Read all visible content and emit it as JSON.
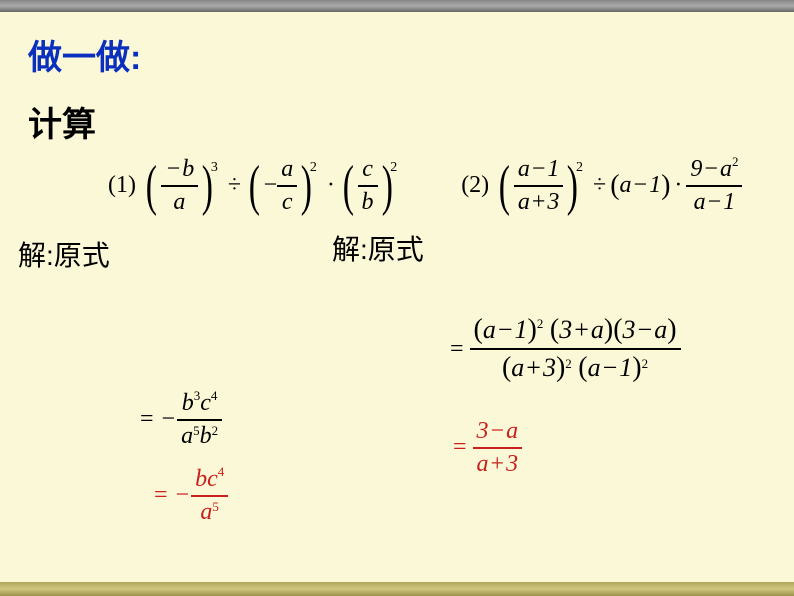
{
  "colors": {
    "background": "#fbf8d7",
    "title": "#0a2fbf",
    "text": "#000000",
    "result": "#c8201d",
    "top_bar": "#888888",
    "bottom_bar": "#b1a65c"
  },
  "typography": {
    "title_fontsize": 34,
    "subtitle_fontsize": 34,
    "label_fontsize": 28,
    "math_fontsize": 24
  },
  "title": "做一做:",
  "subtitle": "计算",
  "problems": {
    "p1": {
      "label": "(1)",
      "terms": [
        {
          "num": "−b",
          "den": "a",
          "exp": "3"
        },
        {
          "op": "÷"
        },
        {
          "prefix": "−",
          "num": "a",
          "den": "c",
          "exp": "2"
        },
        {
          "op": "·"
        },
        {
          "num": "c",
          "den": "b",
          "exp": "2"
        }
      ]
    },
    "p2": {
      "label": "(2)",
      "terms": [
        {
          "num": "a−1",
          "den": "a+3",
          "exp": "2"
        },
        {
          "op": "÷"
        },
        {
          "paren": "a−1"
        },
        {
          "op": "·"
        },
        {
          "num_parts": [
            "9−a",
            "2"
          ],
          "den": "a−1"
        }
      ]
    }
  },
  "solution_label": "解:原式",
  "steps": {
    "s1a": {
      "sign": "= −",
      "num": "b³c⁴",
      "den": "a⁵b²",
      "num_parts": [
        [
          "b",
          "3"
        ],
        [
          "c",
          "4"
        ]
      ],
      "den_parts": [
        [
          "a",
          "5"
        ],
        [
          "b",
          "2"
        ]
      ]
    },
    "s1b": {
      "sign": "= −",
      "num": "bc⁴",
      "den": "a⁵",
      "num_parts": [
        [
          "b",
          ""
        ],
        [
          "c",
          "4"
        ]
      ],
      "den_parts": [
        [
          "a",
          "5"
        ]
      ]
    },
    "s2a": {
      "sign": "=",
      "num_factors": [
        [
          "a−1",
          "2"
        ],
        [
          "3+a",
          ""
        ],
        [
          "3−a",
          ""
        ]
      ],
      "den_factors": [
        [
          "a+3",
          "2"
        ],
        [
          "a−1",
          "2"
        ]
      ]
    },
    "s2b": {
      "sign": "=",
      "num": "3−a",
      "den": "a+3"
    }
  }
}
